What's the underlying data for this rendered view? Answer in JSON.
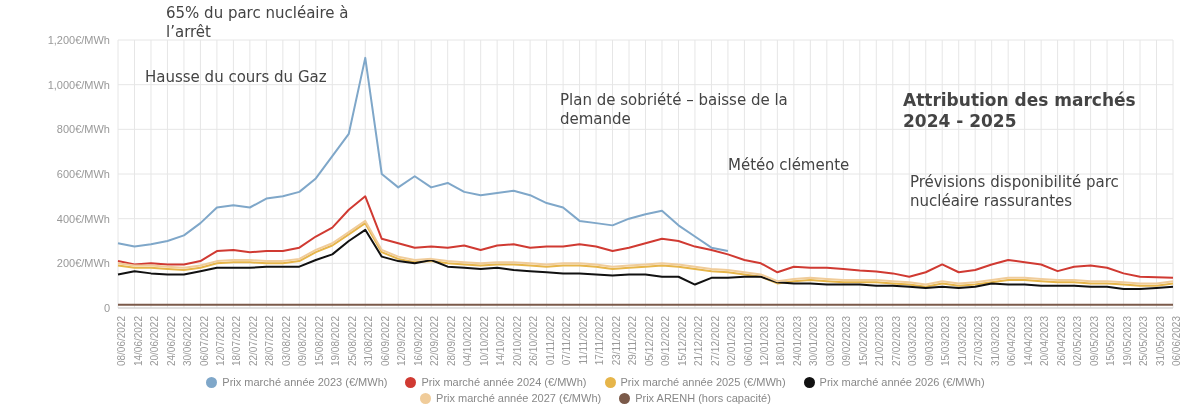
{
  "chart_data": {
    "type": "line",
    "categories": [
      "08/06/2022",
      "14/06/2022",
      "20/06/2022",
      "24/06/2022",
      "30/06/2022",
      "06/07/2022",
      "12/07/2022",
      "18/07/2022",
      "22/07/2022",
      "28/07/2022",
      "03/08/2022",
      "09/08/2022",
      "15/08/2022",
      "19/08/2022",
      "25/08/2022",
      "31/08/2022",
      "06/09/2022",
      "12/09/2022",
      "16/09/2022",
      "22/09/2022",
      "28/09/2022",
      "04/10/2022",
      "10/10/2022",
      "14/10/2022",
      "20/10/2022",
      "26/10/2022",
      "01/11/2022",
      "07/11/2022",
      "11/11/2022",
      "17/11/2022",
      "23/11/2022",
      "29/11/2022",
      "05/12/2022",
      "09/12/2022",
      "15/12/2022",
      "21/12/2022",
      "27/12/2022",
      "02/01/2023",
      "06/01/2023",
      "12/01/2023",
      "18/01/2023",
      "24/01/2023",
      "30/01/2023",
      "03/02/2023",
      "09/02/2023",
      "15/02/2023",
      "21/02/2023",
      "27/02/2023",
      "03/03/2023",
      "09/03/2023",
      "15/03/2023",
      "21/03/2023",
      "27/03/2023",
      "31/03/2023",
      "06/04/2023",
      "14/04/2023",
      "20/04/2023",
      "26/04/2023",
      "02/05/2023",
      "09/05/2023",
      "15/05/2023",
      "19/05/2023",
      "25/05/2023",
      "31/05/2023",
      "06/06/2023"
    ],
    "series": [
      {
        "name": "Prix marché année 2023 (€/MWh)",
        "color": "#7fa7c9",
        "values": [
          290,
          275,
          285,
          300,
          325,
          380,
          450,
          460,
          450,
          490,
          500,
          520,
          580,
          680,
          780,
          1120,
          600,
          540,
          590,
          540,
          560,
          520,
          505,
          515,
          525,
          505,
          470,
          450,
          390,
          380,
          370,
          400,
          420,
          435,
          370,
          320,
          270,
          255,
          null,
          null,
          null,
          null,
          null,
          null,
          null,
          null,
          null,
          null,
          null,
          null,
          null,
          null,
          null,
          null,
          null,
          null,
          null,
          null,
          null,
          null,
          null,
          null,
          null,
          null,
          null
        ]
      },
      {
        "name": "Prix marché année 2024 (€/MWh)",
        "color": "#d03a32",
        "values": [
          210,
          195,
          200,
          195,
          195,
          210,
          255,
          260,
          250,
          255,
          255,
          270,
          320,
          360,
          440,
          500,
          310,
          290,
          270,
          275,
          270,
          280,
          260,
          280,
          285,
          270,
          275,
          275,
          285,
          275,
          255,
          270,
          290,
          310,
          300,
          275,
          260,
          240,
          215,
          200,
          160,
          185,
          180,
          180,
          175,
          168,
          163,
          155,
          140,
          160,
          195,
          160,
          170,
          195,
          215,
          205,
          195,
          165,
          185,
          190,
          180,
          155,
          140,
          138,
          135
        ]
      },
      {
        "name": "Prix marché année 2025 (€/MWh)",
        "color": "#e6b54a",
        "values": [
          190,
          180,
          180,
          175,
          170,
          180,
          200,
          205,
          205,
          200,
          200,
          210,
          250,
          280,
          330,
          380,
          250,
          220,
          205,
          210,
          200,
          195,
          190,
          195,
          195,
          190,
          185,
          190,
          190,
          185,
          175,
          180,
          185,
          190,
          185,
          175,
          165,
          160,
          150,
          140,
          110,
          120,
          125,
          120,
          115,
          115,
          115,
          110,
          105,
          95,
          110,
          100,
          105,
          115,
          125,
          125,
          120,
          115,
          115,
          110,
          110,
          105,
          100,
          100,
          110
        ]
      },
      {
        "name": "Prix marché année 2026 (€/MWh)",
        "color": "#111111",
        "values": [
          150,
          165,
          155,
          150,
          150,
          165,
          180,
          180,
          180,
          185,
          185,
          185,
          215,
          240,
          300,
          350,
          230,
          210,
          200,
          215,
          185,
          180,
          175,
          180,
          170,
          165,
          160,
          155,
          155,
          150,
          145,
          150,
          150,
          140,
          140,
          105,
          135,
          135,
          140,
          140,
          115,
          110,
          110,
          105,
          105,
          105,
          100,
          100,
          95,
          90,
          95,
          90,
          95,
          110,
          105,
          105,
          100,
          100,
          100,
          95,
          95,
          85,
          85,
          90,
          95
        ]
      },
      {
        "name": "Prix marché année 2027 (€/MWh)",
        "color": "#f0cc9a",
        "values": [
          200,
          190,
          190,
          185,
          180,
          190,
          210,
          215,
          215,
          210,
          210,
          220,
          260,
          290,
          340,
          390,
          260,
          230,
          215,
          220,
          210,
          205,
          200,
          205,
          205,
          200,
          195,
          200,
          200,
          195,
          185,
          190,
          195,
          200,
          195,
          185,
          175,
          170,
          160,
          150,
          120,
          130,
          135,
          130,
          125,
          125,
          125,
          120,
          115,
          105,
          120,
          110,
          115,
          125,
          135,
          135,
          130,
          125,
          125,
          120,
          120,
          115,
          110,
          110,
          120
        ]
      },
      {
        "name": "Prix ARENH (hors capacité)",
        "color": "#7b5a4a",
        "values": [
          15,
          15,
          15,
          15,
          15,
          15,
          15,
          15,
          15,
          15,
          15,
          15,
          15,
          15,
          15,
          15,
          15,
          15,
          15,
          15,
          15,
          15,
          15,
          15,
          15,
          15,
          15,
          15,
          15,
          15,
          15,
          15,
          15,
          15,
          15,
          15,
          15,
          15,
          15,
          15,
          15,
          15,
          15,
          15,
          15,
          15,
          15,
          15,
          15,
          15,
          15,
          15,
          15,
          15,
          15,
          15,
          15,
          15,
          15,
          15,
          15,
          15,
          15,
          15,
          15
        ]
      }
    ],
    "ylim": [
      0,
      1200
    ],
    "yticks": [
      {
        "value": 0,
        "label": "0"
      },
      {
        "value": 200,
        "label": "200€/MWh"
      },
      {
        "value": 400,
        "label": "400€/MWh"
      },
      {
        "value": 600,
        "label": "600€/MWh"
      },
      {
        "value": 800,
        "label": "800€/MWh"
      },
      {
        "value": 1000,
        "label": "1,000€/MWh"
      },
      {
        "value": 1200,
        "label": "1,200€/MWh"
      }
    ],
    "grid": true,
    "legend": "bottom",
    "marker": "none",
    "line_style": "solid",
    "annotations": [
      "65% du parc nucléaire à l’arrêt",
      "Hausse du cours du Gaz",
      "Plan de sobriété – baisse de la demande",
      "Météo clémente",
      "Prévisions disponibilité parc nucléaire rassurantes",
      "Attribution des marchés 2024 - 2025"
    ]
  }
}
